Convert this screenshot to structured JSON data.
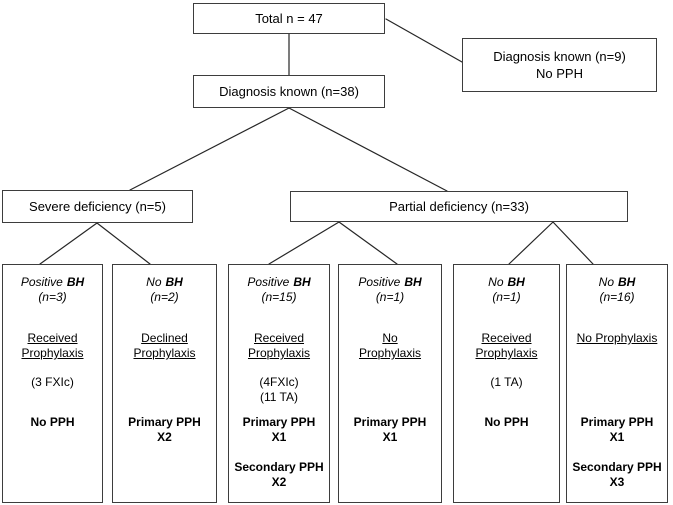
{
  "colors": {
    "box_border": "#3d3d3d",
    "connector": "#262626",
    "background": "#ffffff",
    "text": "#000000"
  },
  "nodes": {
    "total": {
      "label": "Total n = 47"
    },
    "excluded": {
      "line1": "Diagnosis known (n=9)",
      "line2": "No PPH"
    },
    "known": {
      "label": "Diagnosis known (n=38)"
    },
    "severe": {
      "label": "Severe deficiency (n=5)"
    },
    "partial": {
      "label": "Partial deficiency (n=33)"
    }
  },
  "leaves": [
    {
      "bh_status": "Positive",
      "bh_label": "BH",
      "n": "(n=3)",
      "treatment": [
        "Received",
        "Prophylaxis"
      ],
      "details": [
        "(3 FXIc)"
      ],
      "outcomes": [
        [
          "No PPH"
        ]
      ]
    },
    {
      "bh_status": "No",
      "bh_label": "BH",
      "n": "(n=2)",
      "treatment": [
        "Declined",
        "Prophylaxis"
      ],
      "details": [],
      "outcomes": [
        [
          "Primary PPH",
          "X2"
        ]
      ]
    },
    {
      "bh_status": "Positive",
      "bh_label": "BH",
      "n": "(n=15)",
      "treatment": [
        "Received",
        "Prophylaxis"
      ],
      "details": [
        "(4FXIc)",
        "(11 TA)"
      ],
      "outcomes": [
        [
          "Primary PPH",
          "X1"
        ],
        [
          "Secondary PPH",
          "X2"
        ]
      ]
    },
    {
      "bh_status": "Positive",
      "bh_label": "BH",
      "n": "(n=1)",
      "treatment": [
        "No",
        "Prophylaxis"
      ],
      "details": [],
      "outcomes": [
        [
          "Primary PPH",
          "X1"
        ]
      ]
    },
    {
      "bh_status": "No",
      "bh_label": "BH",
      "n": "(n=1)",
      "treatment": [
        "Received",
        "Prophylaxis"
      ],
      "details": [
        "(1 TA)"
      ],
      "outcomes": [
        [
          "No PPH"
        ]
      ]
    },
    {
      "bh_status": "No",
      "bh_label": "BH",
      "n": "(n=16)",
      "treatment": [
        "No Prophylaxis"
      ],
      "details": [],
      "outcomes": [
        [
          "Primary PPH",
          "X1"
        ],
        [
          "Secondary PPH",
          "X3"
        ]
      ]
    }
  ]
}
